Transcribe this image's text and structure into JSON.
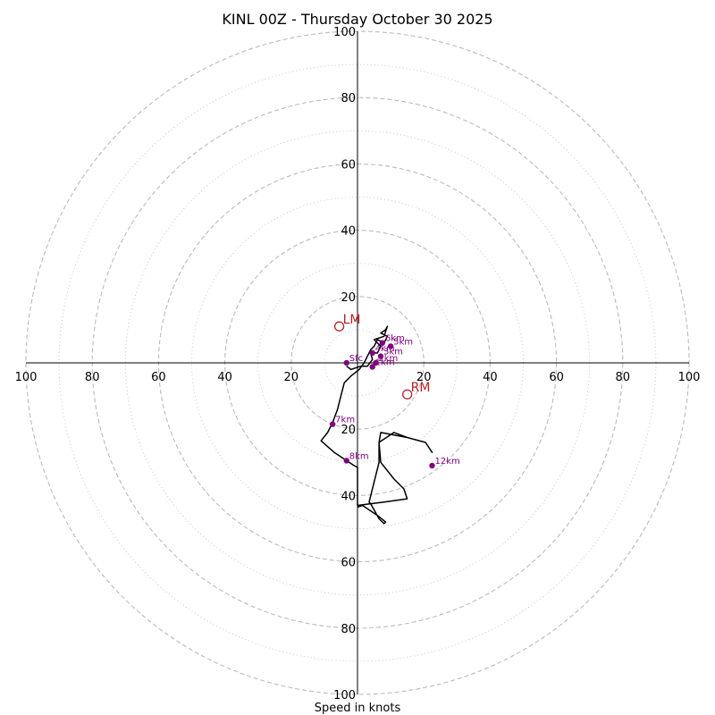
{
  "chart_data": {
    "type": "hodograph",
    "title": "KINL 00Z - Thursday October 30 2025",
    "xlabel": "Speed in knots",
    "units": "knots",
    "axis_range": [
      -100,
      100
    ],
    "major_rings": [
      20,
      40,
      60,
      80,
      100
    ],
    "minor_rings": [
      10,
      30,
      50,
      70,
      90
    ],
    "tick_labels": {
      "top": [
        "20",
        "40",
        "60",
        "80",
        "100"
      ],
      "bottom": [
        "20",
        "40",
        "60",
        "80",
        "100"
      ],
      "left": [
        "20",
        "40",
        "60",
        "80",
        "100"
      ],
      "right": [
        "20",
        "40",
        "60",
        "80",
        "100"
      ]
    },
    "colors": {
      "trace": "#000000",
      "height_markers": "#800080",
      "storm_motion": "#b22222",
      "rings": "#bbbbbb"
    },
    "trace": {
      "u": [
        -3.3,
        -2,
        1,
        3,
        4.5,
        4,
        6,
        7,
        5,
        8,
        9,
        8.5,
        7,
        9,
        8,
        6,
        5,
        4,
        3,
        2,
        0.5,
        -2,
        -4,
        -5,
        -6,
        -7.5,
        -9,
        -11,
        -7,
        -1,
        0,
        0,
        8,
        15,
        14,
        11,
        7,
        6.5,
        7,
        15,
        20.5,
        22.5,
        20.5,
        22.5,
        20.5,
        15,
        11,
        6.5,
        6.5,
        3.5,
        4,
        6.5,
        8,
        8.5,
        6,
        1.5,
        0
      ],
      "v": [
        -1,
        -2,
        -1,
        -1,
        1,
        3,
        3,
        5,
        7,
        8,
        11,
        10,
        9,
        8,
        6,
        7,
        5,
        4,
        2,
        0,
        -2,
        -4,
        -6,
        -10,
        -14,
        -18,
        -21,
        -23.5,
        -27,
        -31,
        -31.5,
        -43,
        -42,
        -41,
        -38,
        -35,
        -30,
        -24,
        -21,
        -22.5,
        -24,
        -27,
        -24,
        -27,
        -24,
        -22.5,
        -21,
        -24,
        -30,
        -42,
        -42.5,
        -47,
        -48.5,
        -48,
        -46,
        -43,
        -43.5
      ],
      "markers": [
        {
          "label": "Sfc",
          "u": -3.3,
          "v": 0
        },
        {
          "label": "1km",
          "u": 4.5,
          "v": -1.2
        },
        {
          "label": "2km",
          "u": 5.5,
          "v": 0
        },
        {
          "label": "3km",
          "u": 7,
          "v": 2
        },
        {
          "label": "4km",
          "u": 4.5,
          "v": 3
        },
        {
          "label": "5km",
          "u": 10,
          "v": 5
        },
        {
          "label": "6km",
          "u": 7.5,
          "v": 6
        },
        {
          "label": "7km",
          "u": -7.5,
          "v": -18.5
        },
        {
          "label": "8km",
          "u": -3.3,
          "v": -29.5
        },
        {
          "label": "12km",
          "u": 22.5,
          "v": -31
        }
      ]
    },
    "storm_motion": {
      "RM": {
        "label": "RM",
        "u": 15,
        "v": -9.5
      },
      "LM": {
        "label": "LM",
        "u": -5.5,
        "v": 11
      }
    }
  }
}
